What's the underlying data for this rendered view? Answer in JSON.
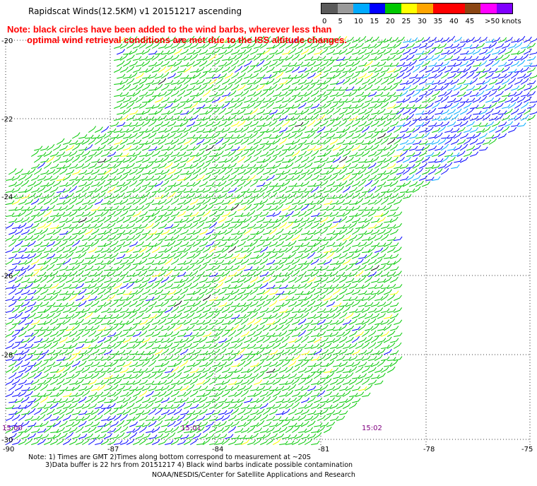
{
  "header": {
    "title": "Rapidscat Winds(12.5KM) v1 20151217 ascending"
  },
  "note": {
    "line1": "Note: black circles have been added to the wind barbs, wherever less than",
    "line2": "optimal wind retrieval conditions are met due to the ISS altitude changes."
  },
  "legend": {
    "unit": "knots",
    "bins": [
      {
        "label": "0",
        "color": "#5a5a5a"
      },
      {
        "label": "5",
        "color": "#9a9a9a"
      },
      {
        "label": "10",
        "color": "#00aaff"
      },
      {
        "label": "15",
        "color": "#0000ff"
      },
      {
        "label": "20",
        "color": "#00c800"
      },
      {
        "label": "25",
        "color": "#ffff00"
      },
      {
        "label": "30",
        "color": "#ffa500"
      },
      {
        "label": "35",
        "color": "#ff0000"
      },
      {
        "label": "40",
        "color": "#ff0000"
      },
      {
        "label": "45",
        "color": "#8b4513"
      },
      {
        "label": ">50",
        "color": "#ff00ff"
      },
      {
        "label": "",
        "color": "#8000ff"
      }
    ],
    "top_label": ">50 knots"
  },
  "map": {
    "lat_labels": [
      "-20",
      "-22",
      "-24",
      "-26",
      "-28",
      "-30"
    ],
    "lon_labels": [
      "-90",
      "-87",
      "-84",
      "-81",
      "-78",
      "-75"
    ],
    "time_labels": [
      "15:00",
      "15:01",
      "15:02"
    ],
    "barb_colors": {
      "light": "#00aaff",
      "blue": "#0000ff",
      "green": "#00c800",
      "yellow": "#ffff00",
      "black": "#000000"
    }
  },
  "footer": {
    "line1": "Note: 1) Times are GMT 2)Times along bottom correspond to measurement at ~20S",
    "line2": "3)Data buffer is 22 hrs from 20151217 4) Black wind barbs indicate possible contamination",
    "line3": "NOAA/NESDIS/Center for Satellite Applications and Research"
  }
}
